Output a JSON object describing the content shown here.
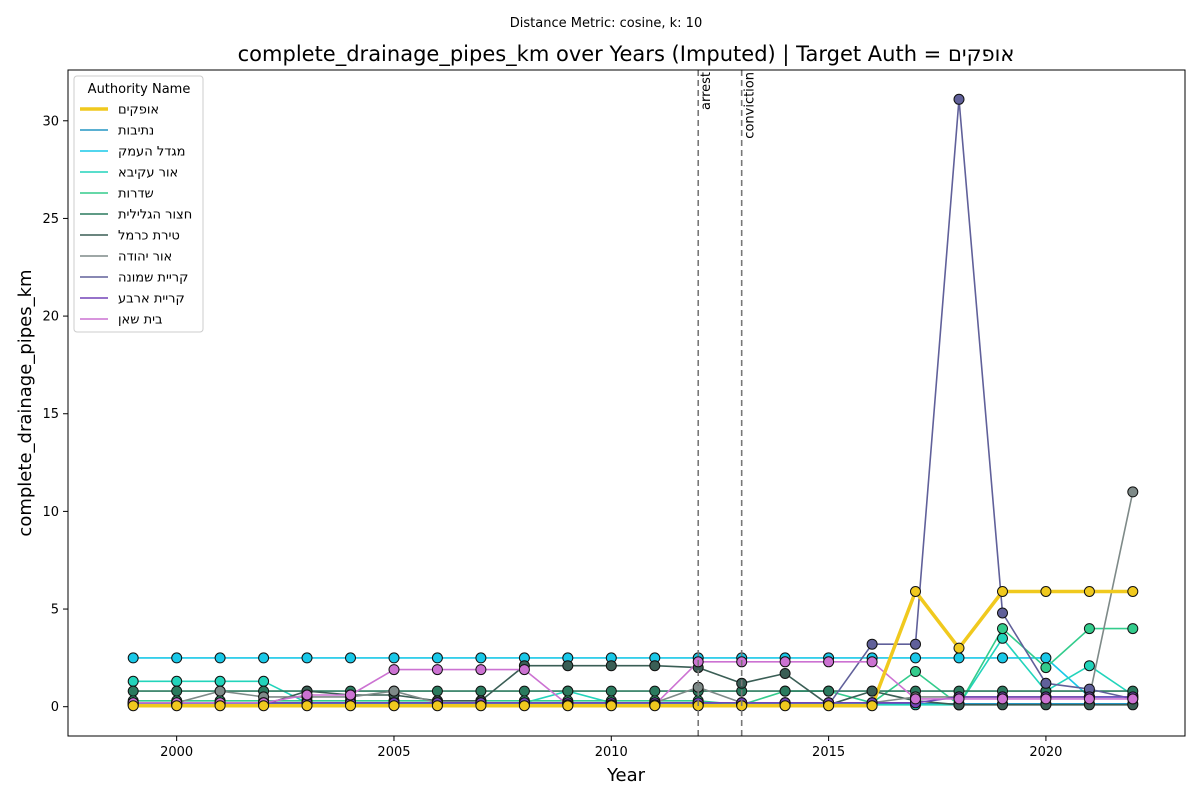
{
  "chart_data": {
    "type": "line",
    "subtitle": "Distance Metric: cosine, k: 10",
    "title": "complete_drainage_pipes_km over Years (Imputed) | Target Auth = אופקים",
    "xlabel": "Year",
    "ylabel": "complete_drainage_pipes_km",
    "xlim": [
      1997.5,
      2023.2
    ],
    "ylim": [
      -1.5,
      32.6
    ],
    "xticks": [
      2000,
      2005,
      2010,
      2015,
      2020
    ],
    "yticks": [
      0,
      5,
      10,
      15,
      20,
      25,
      30
    ],
    "grid": false,
    "legend": {
      "title": "Authority Name",
      "position": "top-left"
    },
    "x": [
      1999,
      2000,
      2001,
      2002,
      2003,
      2004,
      2005,
      2006,
      2007,
      2008,
      2009,
      2010,
      2011,
      2012,
      2013,
      2014,
      2015,
      2016,
      2017,
      2018,
      2019,
      2020,
      2021,
      2022
    ],
    "vlines": [
      {
        "x": 2012,
        "label": "arrest"
      },
      {
        "x": 2013,
        "label": "conviction"
      }
    ],
    "series": [
      {
        "name": "אופקים",
        "color": "#f0c91e",
        "target": true,
        "values": [
          0.05,
          0.05,
          0.05,
          0.05,
          0.05,
          0.05,
          0.05,
          0.05,
          0.05,
          0.05,
          0.05,
          0.05,
          0.05,
          0.05,
          0.05,
          0.05,
          0.05,
          0.05,
          5.9,
          3.0,
          5.9,
          5.9,
          5.9,
          5.9
        ]
      },
      {
        "name": "נתיבות",
        "color": "#2496c4",
        "values": [
          0.15,
          0.15,
          0.15,
          0.15,
          0.15,
          0.15,
          0.15,
          0.15,
          0.15,
          0.15,
          0.15,
          0.15,
          0.15,
          0.15,
          0.15,
          0.15,
          0.15,
          0.15,
          0.15,
          0.15,
          0.15,
          0.15,
          0.15,
          0.15
        ]
      },
      {
        "name": "מגדל העמק",
        "color": "#19c8e8",
        "values": [
          2.5,
          2.5,
          2.5,
          2.5,
          2.5,
          2.5,
          2.5,
          2.5,
          2.5,
          2.5,
          2.5,
          2.5,
          2.5,
          2.5,
          2.5,
          2.5,
          2.5,
          2.5,
          2.5,
          2.5,
          2.5,
          2.5,
          0.5,
          0.5
        ]
      },
      {
        "name": "אור עקיבא",
        "color": "#22d4bb",
        "values": [
          1.3,
          1.3,
          1.3,
          1.3,
          0.2,
          0.2,
          0.2,
          0.2,
          0.2,
          0.2,
          0.8,
          0.2,
          0.2,
          0.2,
          0.2,
          0.2,
          0.2,
          0.1,
          0.1,
          0.1,
          3.5,
          0.8,
          2.1,
          0.6
        ]
      },
      {
        "name": "שדרות",
        "color": "#33cc8c",
        "values": [
          0.3,
          0.3,
          0.3,
          0.3,
          0.3,
          0.3,
          0.3,
          0.3,
          0.3,
          0.3,
          0.3,
          0.3,
          0.3,
          0.3,
          0.1,
          0.8,
          0.8,
          0.2,
          1.8,
          0.1,
          4.0,
          2.0,
          4.0,
          4.0
        ]
      },
      {
        "name": "חצור הגלילית",
        "color": "#2a7a5e",
        "values": [
          0.8,
          0.8,
          0.8,
          0.8,
          0.8,
          0.8,
          0.8,
          0.8,
          0.8,
          0.8,
          0.8,
          0.8,
          0.8,
          0.8,
          0.8,
          0.8,
          0.8,
          0.8,
          0.8,
          0.8,
          0.8,
          0.8,
          0.8,
          0.8
        ]
      },
      {
        "name": "טירת כרמל",
        "color": "#3a5e55",
        "values": [
          0.1,
          0.1,
          0.1,
          0.1,
          0.8,
          0.6,
          0.6,
          0.3,
          0.3,
          2.1,
          2.1,
          2.1,
          2.1,
          2.0,
          1.2,
          1.7,
          0.1,
          0.8,
          0.3,
          0.1,
          0.1,
          0.1,
          0.1,
          0.1
        ]
      },
      {
        "name": "אור יהודה",
        "color": "#7e8a88",
        "values": [
          0.2,
          0.2,
          0.8,
          0.5,
          0.5,
          0.5,
          0.8,
          0.2,
          0.2,
          0.2,
          0.2,
          0.2,
          0.2,
          1.0,
          0.2,
          0.2,
          0.2,
          0.2,
          0.5,
          0.5,
          0.5,
          0.5,
          0.5,
          11.0
        ]
      },
      {
        "name": "קריית שמונה",
        "color": "#60609a",
        "values": [
          0.1,
          0.1,
          0.1,
          0.1,
          0.1,
          0.1,
          0.1,
          0.1,
          0.1,
          0.1,
          0.1,
          0.1,
          0.1,
          0.1,
          0.1,
          0.1,
          0.1,
          3.2,
          3.2,
          31.1,
          4.8,
          1.2,
          0.9,
          0.4
        ]
      },
      {
        "name": "קריית ארבע",
        "color": "#7444b8",
        "values": [
          0.2,
          0.2,
          0.2,
          0.2,
          0.2,
          0.2,
          0.2,
          0.2,
          0.2,
          0.2,
          0.2,
          0.2,
          0.2,
          0.2,
          0.2,
          0.2,
          0.2,
          0.2,
          0.2,
          0.5,
          0.5,
          0.5,
          0.5,
          0.5
        ]
      },
      {
        "name": "בית שאן",
        "color": "#cc72d2",
        "values": [
          0.2,
          0.2,
          0.2,
          0.2,
          0.6,
          0.6,
          1.9,
          1.9,
          1.9,
          1.9,
          0.1,
          0.1,
          0.1,
          2.3,
          2.3,
          2.3,
          2.3,
          2.3,
          0.4,
          0.4,
          0.4,
          0.4,
          0.4,
          0.4
        ]
      }
    ]
  }
}
